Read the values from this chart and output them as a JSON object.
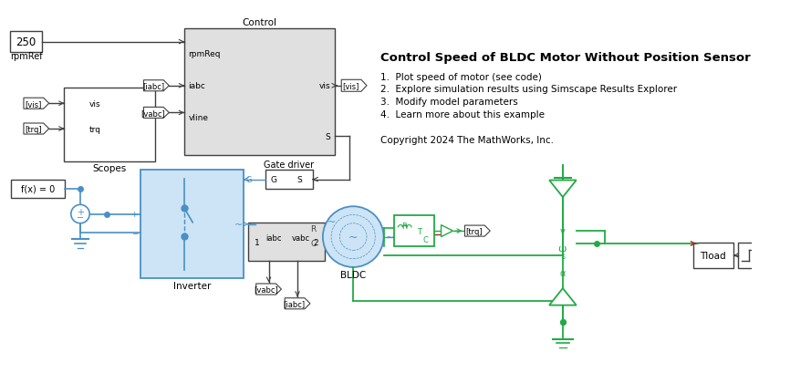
{
  "title": "Control Speed of BLDC Motor Without Position Sensor",
  "bullet_points": [
    "1.  Plot speed of motor (see code)",
    "2.  Explore simulation results using Simscape Results Explorer",
    "3.  Modify model parameters",
    "4.  Learn more about this example"
  ],
  "copyright": "Copyright 2024 The MathWorks, Inc.",
  "bg_color": "#ffffff",
  "block_edge": "#404040",
  "blue": "#4a90c4",
  "blue_dark": "#2060a0",
  "green": "#22aa44",
  "red": "#aa2222",
  "light_blue_fill": "#cce4f5",
  "gray_fill": "#e0e0e0",
  "white": "#ffffff"
}
